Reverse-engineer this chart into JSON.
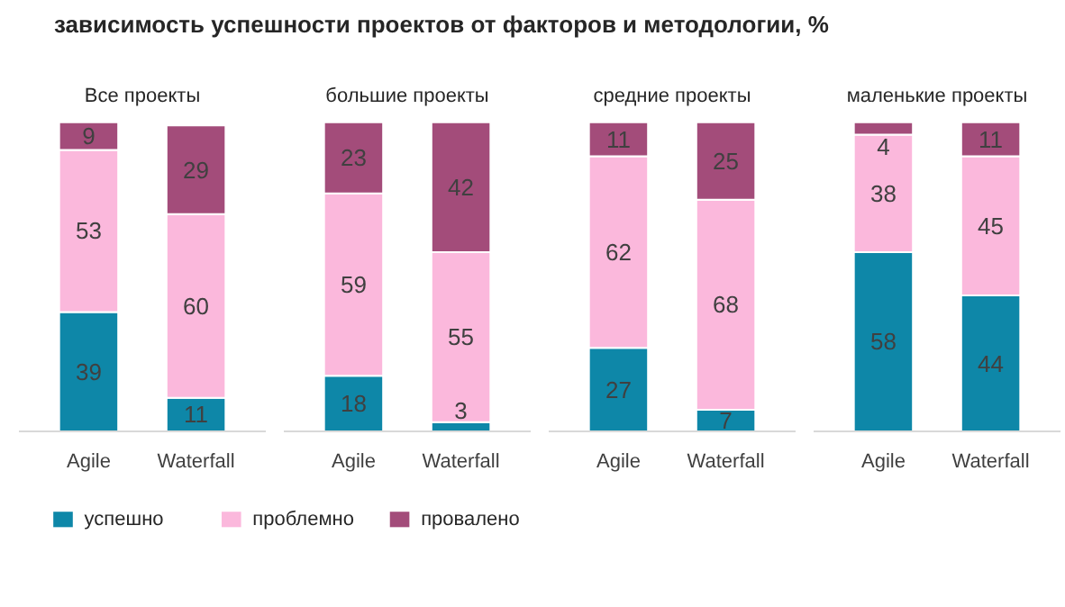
{
  "chart_data": [
    {
      "type": "bar",
      "title": "зависимость успешности проектов от факторов и методологии, %",
      "subtitle": "Все проекты",
      "categories": [
        "Agile",
        "Waterfall"
      ],
      "stacked": true,
      "data_labels": true,
      "legend": "bottom",
      "series": [
        {
          "name": "успешно",
          "color": "#0e87a8",
          "values": [
            39,
            11
          ]
        },
        {
          "name": "проблемно",
          "color": "#fbb8dc",
          "values": [
            53,
            60
          ]
        },
        {
          "name": "провалено",
          "color": "#a34c7a",
          "values": [
            9,
            29
          ]
        }
      ]
    },
    {
      "type": "bar",
      "subtitle": "большие проекты",
      "categories": [
        "Agile",
        "Waterfall"
      ],
      "stacked": true,
      "data_labels": true,
      "series": [
        {
          "color": "#0e87a8",
          "values": [
            18,
            3
          ]
        },
        {
          "color": "#fbb8dc",
          "values": [
            59,
            55
          ]
        },
        {
          "color": "#a34c7a",
          "values": [
            23,
            42
          ]
        }
      ]
    },
    {
      "type": "bar",
      "subtitle": "средние проекты",
      "categories": [
        "Agile",
        "Waterfall"
      ],
      "stacked": true,
      "data_labels": true,
      "series": [
        {
          "color": "#0e87a8",
          "values": [
            27,
            7
          ]
        },
        {
          "color": "#fbb8dc",
          "values": [
            62,
            68
          ]
        },
        {
          "color": "#a34c7a",
          "values": [
            11,
            25
          ]
        }
      ]
    },
    {
      "type": "bar",
      "subtitle": "маленькие проекты",
      "categories": [
        "Agile",
        "Waterfall"
      ],
      "stacked": true,
      "data_labels": true,
      "series": [
        {
          "color": "#0e87a8",
          "values": [
            58,
            44
          ]
        },
        {
          "color": "#fbb8dc",
          "values": [
            38,
            45
          ]
        },
        {
          "color": "#a34c7a",
          "values": [
            4,
            11
          ]
        }
      ]
    }
  ]
}
